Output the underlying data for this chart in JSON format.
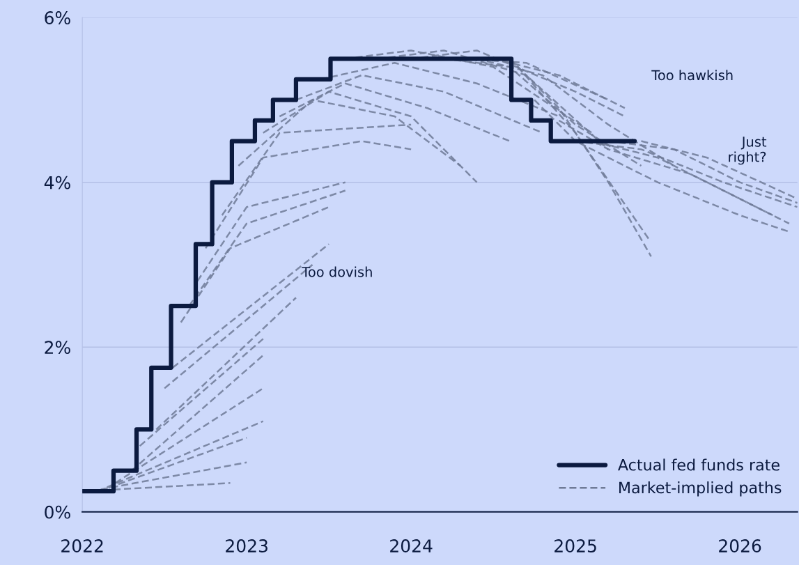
{
  "chart_data": {
    "type": "line",
    "xlim": [
      2022,
      2026.35
    ],
    "xticks": [
      2022,
      2023,
      2024,
      2025,
      2026
    ],
    "ylim": [
      0,
      6
    ],
    "yticks": [
      {
        "value": 0,
        "label": "0%"
      },
      {
        "value": 2,
        "label": "2%"
      },
      {
        "value": 4,
        "label": "4%"
      },
      {
        "value": 6,
        "label": "6%"
      }
    ],
    "grid": "y",
    "legend": "bottom right",
    "annotations": [
      "Too hawkish",
      "Just\nright?",
      "Too dovish"
    ],
    "series": [
      {
        "name": "Actual fed funds rate",
        "type": "step",
        "color": "#0b1a3f",
        "line_style": "solid",
        "x": [
          2022.0,
          2022.19,
          2022.33,
          2022.42,
          2022.54,
          2022.69,
          2022.79,
          2022.91,
          2023.05,
          2023.16,
          2023.3,
          2023.51,
          2024.61,
          2024.73,
          2024.85,
          2025.36
        ],
        "values": [
          0.25,
          0.5,
          1.0,
          1.75,
          2.5,
          3.25,
          4.0,
          4.5,
          4.75,
          5.0,
          5.25,
          5.5,
          5.0,
          4.75,
          4.5,
          4.5
        ]
      },
      {
        "name": "Market-implied paths",
        "color": "#6f7a96",
        "line_style": "dashed",
        "x": [
          2022.0,
          2022.9
        ],
        "values": [
          0.25,
          0.35
        ]
      },
      {
        "color": "#6f7a96",
        "line_style": "dashed",
        "x": [
          2022.05,
          2023.0
        ],
        "values": [
          0.25,
          0.6
        ]
      },
      {
        "color": "#6f7a96",
        "line_style": "dashed",
        "x": [
          2022.1,
          2023.0
        ],
        "values": [
          0.25,
          0.9
        ]
      },
      {
        "color": "#6f7a96",
        "line_style": "dashed",
        "x": [
          2022.15,
          2023.1
        ],
        "values": [
          0.3,
          1.1
        ]
      },
      {
        "color": "#6f7a96",
        "line_style": "dashed",
        "x": [
          2022.2,
          2023.1
        ],
        "values": [
          0.35,
          1.5
        ]
      },
      {
        "color": "#6f7a96",
        "line_style": "dashed",
        "x": [
          2022.3,
          2023.1
        ],
        "values": [
          0.5,
          1.9
        ]
      },
      {
        "color": "#6f7a96",
        "line_style": "dashed",
        "x": [
          2022.35,
          2023.1
        ],
        "values": [
          0.8,
          2.1
        ]
      },
      {
        "color": "#6f7a96",
        "line_style": "dashed",
        "x": [
          2022.45,
          2023.3
        ],
        "values": [
          1.0,
          2.6
        ]
      },
      {
        "color": "#6f7a96",
        "line_style": "dashed",
        "x": [
          2022.5,
          2023.4
        ],
        "values": [
          1.5,
          3.0
        ]
      },
      {
        "color": "#6f7a96",
        "line_style": "dashed",
        "x": [
          2022.55,
          2023.5
        ],
        "values": [
          1.75,
          3.25
        ]
      },
      {
        "color": "#6f7a96",
        "line_style": "dashed",
        "x": [
          2022.6,
          2022.9,
          2023.5
        ],
        "values": [
          2.3,
          3.2,
          3.7
        ]
      },
      {
        "color": "#6f7a96",
        "line_style": "dashed",
        "x": [
          2022.65,
          2023.0,
          2023.6
        ],
        "values": [
          2.5,
          3.5,
          3.9
        ]
      },
      {
        "color": "#6f7a96",
        "line_style": "dashed",
        "x": [
          2022.7,
          2023.0,
          2023.6
        ],
        "values": [
          2.8,
          3.7,
          4.0
        ]
      },
      {
        "color": "#6f7a96",
        "line_style": "dashed",
        "x": [
          2022.75,
          2023.1,
          2023.7,
          2024.0
        ],
        "values": [
          3.2,
          4.3,
          4.5,
          4.4
        ]
      },
      {
        "color": "#6f7a96",
        "line_style": "dashed",
        "x": [
          2022.85,
          2023.2,
          2024.0
        ],
        "values": [
          3.6,
          4.6,
          4.7
        ]
      },
      {
        "color": "#6f7a96",
        "line_style": "dashed",
        "x": [
          2022.95,
          2023.4,
          2023.9,
          2024.3
        ],
        "values": [
          4.2,
          5.0,
          4.8,
          4.2
        ]
      },
      {
        "color": "#6f7a96",
        "line_style": "dashed",
        "x": [
          2023.1,
          2023.5,
          2024.0,
          2024.4
        ],
        "values": [
          4.6,
          5.1,
          4.8,
          4.0
        ]
      },
      {
        "color": "#6f7a96",
        "line_style": "dashed",
        "x": [
          2023.2,
          2023.6,
          2024.1,
          2024.6
        ],
        "values": [
          4.8,
          5.2,
          4.9,
          4.5
        ]
      },
      {
        "color": "#6f7a96",
        "line_style": "dashed",
        "x": [
          2023.3,
          2023.7,
          2024.2,
          2024.8
        ],
        "values": [
          5.0,
          5.3,
          5.1,
          4.6
        ]
      },
      {
        "color": "#6f7a96",
        "line_style": "dashed",
        "x": [
          2023.45,
          2023.9,
          2024.4,
          2024.9
        ],
        "values": [
          5.25,
          5.45,
          5.2,
          4.8
        ]
      },
      {
        "color": "#6f7a96",
        "line_style": "dashed",
        "x": [
          2023.6,
          2024.0,
          2024.5,
          2025.1
        ],
        "values": [
          5.5,
          5.6,
          5.4,
          4.6
        ]
      },
      {
        "color": "#6f7a96",
        "line_style": "dashed",
        "x": [
          2023.8,
          2024.2,
          2024.7,
          2025.2
        ],
        "values": [
          5.5,
          5.6,
          5.3,
          4.4
        ]
      },
      {
        "color": "#6f7a96",
        "line_style": "dashed",
        "x": [
          2024.0,
          2024.4,
          2025.0,
          2025.3
        ],
        "values": [
          5.5,
          5.6,
          5.1,
          4.8
        ]
      },
      {
        "color": "#6f7a96",
        "line_style": "dashed",
        "x": [
          2024.2,
          2024.6,
          2025.0,
          2025.4
        ],
        "values": [
          5.5,
          5.4,
          4.7,
          4.2
        ]
      },
      {
        "color": "#6f7a96",
        "line_style": "dashed",
        "x": [
          2024.4,
          2024.8,
          2025.2,
          2025.6
        ],
        "values": [
          5.5,
          5.3,
          4.7,
          4.2
        ]
      },
      {
        "color": "#6f7a96",
        "line_style": "dashed",
        "x": [
          2024.3,
          2024.7,
          2025.2
        ],
        "values": [
          5.5,
          5.45,
          5.0
        ]
      },
      {
        "color": "#6f7a96",
        "line_style": "dashed",
        "x": [
          2024.5,
          2024.9,
          2025.3
        ],
        "values": [
          5.5,
          5.3,
          4.9
        ]
      },
      {
        "color": "#6f7a96",
        "line_style": "dashed",
        "x": [
          2024.6,
          2024.9,
          2025.2,
          2025.46
        ],
        "values": [
          5.5,
          4.9,
          4.0,
          3.1
        ]
      },
      {
        "color": "#6f7a96",
        "line_style": "dashed",
        "x": [
          2024.65,
          2025.0,
          2025.45
        ],
        "values": [
          5.4,
          4.6,
          3.3
        ]
      },
      {
        "color": "#6f7a96",
        "line_style": "dashed",
        "x": [
          2024.75,
          2025.0,
          2025.5,
          2026.0,
          2026.3
        ],
        "values": [
          5.0,
          4.5,
          4.0,
          3.6,
          3.4
        ]
      },
      {
        "color": "#6f7a96",
        "line_style": "dashed",
        "x": [
          2024.9,
          2025.2,
          2025.7,
          2026.2
        ],
        "values": [
          4.75,
          4.4,
          4.1,
          3.6
        ]
      },
      {
        "color": "#6f7a96",
        "line_style": "dashed",
        "x": [
          2025.0,
          2025.4,
          2025.9,
          2026.35
        ],
        "values": [
          4.5,
          4.4,
          4.0,
          3.7
        ]
      },
      {
        "color": "#6f7a96",
        "line_style": "dashed",
        "x": [
          2025.1,
          2025.5,
          2025.9,
          2026.3
        ],
        "values": [
          4.5,
          4.3,
          3.9,
          3.5
        ]
      },
      {
        "color": "#6f7a96",
        "line_style": "dashed",
        "x": [
          2025.2,
          2025.6,
          2026.0,
          2026.35
        ],
        "values": [
          4.5,
          4.4,
          4.0,
          3.75
        ]
      },
      {
        "color": "#6f7a96",
        "line_style": "dashed",
        "x": [
          2025.4,
          2025.8,
          2026.35
        ],
        "values": [
          4.5,
          4.3,
          3.8
        ]
      }
    ]
  }
}
